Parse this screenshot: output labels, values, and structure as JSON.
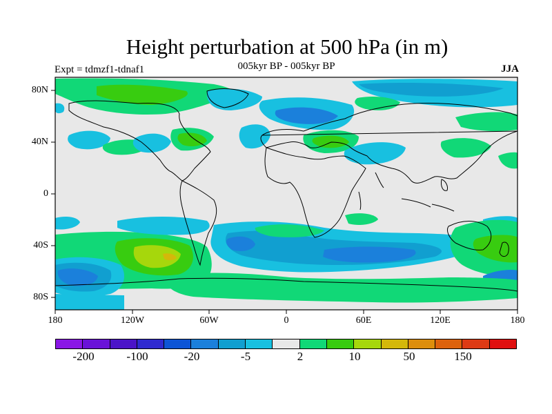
{
  "title": "Height perturbation at 500 hPa (in m)",
  "subtitle": "005kyr BP - 005kyr BP",
  "expt_label": "Expt = tdmzf1-tdnaf1",
  "season": "JJA",
  "latitude_ticks": [
    "80N",
    "40N",
    "0",
    "40S",
    "80S"
  ],
  "longitude_ticks": [
    "180",
    "120W",
    "60W",
    "0",
    "60E",
    "120E",
    "180"
  ],
  "colorbar": {
    "colors": [
      "#8a17e6",
      "#6a12d8",
      "#4b14c8",
      "#2f2ad0",
      "#0d55d6",
      "#1b80db",
      "#119fd0",
      "#18c0e0",
      "#e8e8e8",
      "#11d877",
      "#38cc10",
      "#a6d70c",
      "#d4b80a",
      "#dd8e0c",
      "#dd620c",
      "#dd3a14",
      "#e01010"
    ],
    "labels": [
      "-200",
      "-100",
      "-20",
      "-5",
      "2",
      "10",
      "50",
      "150"
    ]
  },
  "map_colors": {
    "background": "#e8e8e8",
    "light_blue": "#18c0e0",
    "mid_blue": "#119fd0",
    "deep_blue": "#1b80db",
    "green": "#11d877",
    "bright_green": "#38cc10",
    "yellow_green": "#a6d70c",
    "yellow": "#d4b80a"
  }
}
